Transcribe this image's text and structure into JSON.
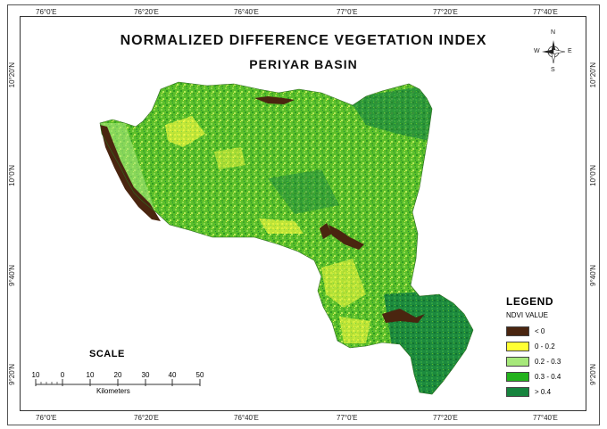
{
  "map": {
    "title": "NORMALIZED DIFFERENCE VEGETATION INDEX",
    "subtitle": "PERIYAR BASIN"
  },
  "graticule": {
    "longitudes_top": [
      "76°0'E",
      "76°20'E",
      "76°40'E",
      "77°0'E",
      "77°20'E",
      "77°40'E"
    ],
    "longitudes_bottom": [
      "76°0'E",
      "76°20'E",
      "76°40'E",
      "77°0'E",
      "77°20'E",
      "77°40'E"
    ],
    "latitudes_left": [
      "10°20'N",
      "10°0'N",
      "9°40'N",
      "9°20'N"
    ],
    "latitudes_right": [
      "10°20'N",
      "10°0'N",
      "9°40'N",
      "9°20'N"
    ]
  },
  "compass": {
    "north": "N",
    "south": "S",
    "east": "E",
    "west": "W"
  },
  "legend": {
    "title": "LEGEND",
    "subtitle": "NDVI VALUE",
    "items": [
      {
        "label": "< 0",
        "color": "#4a2510"
      },
      {
        "label": "0 - 0.2",
        "color": "#ffff33"
      },
      {
        "label": "0.2 - 0.3",
        "color": "#a6e87a"
      },
      {
        "label": "0.3 - 0.4",
        "color": "#22b21c"
      },
      {
        "label": "> 0.4",
        "color": "#16843e"
      }
    ]
  },
  "scale": {
    "title": "SCALE",
    "ticks": [
      "10",
      "0",
      "10",
      "20",
      "30",
      "40",
      "50"
    ],
    "unit": "Kilometers"
  }
}
